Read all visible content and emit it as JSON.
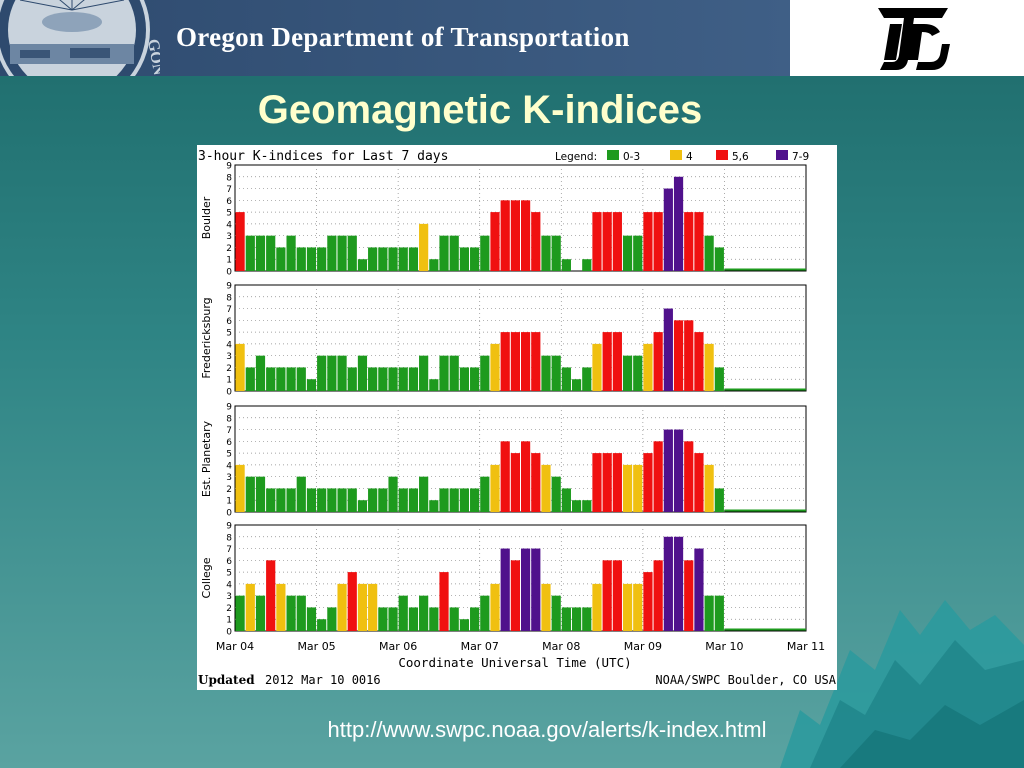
{
  "header": {
    "agency_name": "Oregon Department of Transportation",
    "seal_text": "GON"
  },
  "slide": {
    "title": "Geomagnetic K-indices",
    "url": "http://www.swpc.noaa.gov/alerts/k-index.html"
  },
  "colors": {
    "green": "#1e9a1e",
    "yellow": "#f0c010",
    "red": "#f01010",
    "purple": "#50118c",
    "title": "#ffffcc"
  },
  "chart_data": {
    "type": "bar",
    "title": "3-hour K-indices for Last 7 days",
    "legend": {
      "label": "Legend:",
      "items": [
        {
          "label": "0-3",
          "color": "green"
        },
        {
          "label": "4",
          "color": "yellow"
        },
        {
          "label": "5,6",
          "color": "red"
        },
        {
          "label": "7-9",
          "color": "purple"
        }
      ]
    },
    "xlabel": "Coordinate Universal Time (UTC)",
    "x_ticks": [
      "Mar 04",
      "Mar 05",
      "Mar 06",
      "Mar 07",
      "Mar 08",
      "Mar 09",
      "Mar 10",
      "Mar 11"
    ],
    "ylim": [
      0,
      9
    ],
    "y_ticks": [
      "0",
      "1",
      "2",
      "3",
      "4",
      "5",
      "6",
      "7",
      "8",
      "9"
    ],
    "bars_per_day": 8,
    "footer_left_label": "Updated",
    "footer_left_value": "2012 Mar 10 0016",
    "footer_right": "NOAA/SWPC Boulder, CO USA",
    "series": [
      {
        "name": "Boulder",
        "values": [
          5,
          3,
          3,
          3,
          2,
          3,
          2,
          2,
          2,
          3,
          3,
          3,
          1,
          2,
          2,
          2,
          2,
          2,
          4,
          1,
          3,
          3,
          2,
          2,
          3,
          5,
          6,
          6,
          6,
          5,
          3,
          3,
          1,
          0,
          1,
          5,
          5,
          5,
          3,
          3,
          5,
          5,
          7,
          8,
          5,
          5,
          3,
          2
        ]
      },
      {
        "name": "Fredericksburg",
        "values": [
          4,
          2,
          3,
          2,
          2,
          2,
          2,
          1,
          3,
          3,
          3,
          2,
          3,
          2,
          2,
          2,
          2,
          2,
          3,
          1,
          3,
          3,
          2,
          2,
          3,
          4,
          5,
          5,
          5,
          5,
          3,
          3,
          2,
          1,
          2,
          4,
          5,
          5,
          3,
          3,
          4,
          5,
          7,
          6,
          6,
          5,
          4,
          2
        ]
      },
      {
        "name": "Est. Planetary",
        "values": [
          4,
          3,
          3,
          2,
          2,
          2,
          3,
          2,
          2,
          2,
          2,
          2,
          1,
          2,
          2,
          3,
          2,
          2,
          3,
          1,
          2,
          2,
          2,
          2,
          3,
          4,
          6,
          5,
          6,
          5,
          4,
          3,
          2,
          1,
          1,
          5,
          5,
          5,
          4,
          4,
          5,
          6,
          7,
          7,
          6,
          5,
          4,
          2
        ]
      },
      {
        "name": "College",
        "values": [
          3,
          4,
          3,
          6,
          4,
          3,
          3,
          2,
          1,
          2,
          4,
          5,
          4,
          4,
          2,
          2,
          3,
          2,
          3,
          2,
          5,
          2,
          1,
          2,
          3,
          4,
          7,
          6,
          7,
          7,
          4,
          3,
          2,
          2,
          2,
          4,
          6,
          6,
          4,
          4,
          5,
          6,
          8,
          8,
          6,
          7,
          3,
          3
        ]
      }
    ]
  }
}
